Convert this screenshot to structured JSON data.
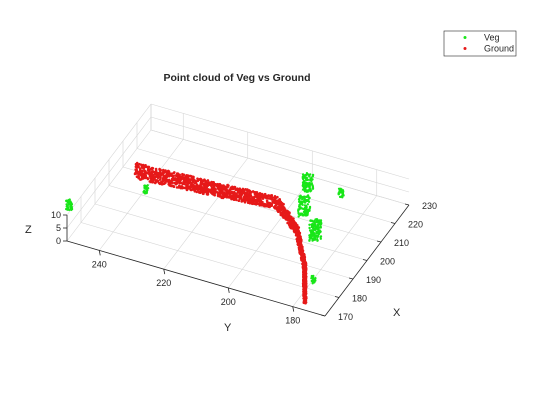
{
  "chart_data": {
    "type": "scatter",
    "projection": "3d",
    "title": "Point cloud of Veg vs Ground",
    "xlabel": "X",
    "ylabel": "Y",
    "zlabel": "Z",
    "xlim": [
      170,
      230
    ],
    "ylim": [
      170,
      250
    ],
    "zlim": [
      0,
      10
    ],
    "xticks": [
      "170",
      "180",
      "190",
      "200",
      "210",
      "220",
      "230"
    ],
    "yticks": [
      "180",
      "200",
      "220",
      "240"
    ],
    "zticks": [
      "0",
      "5",
      "10"
    ],
    "grid": true,
    "legend": "top-right",
    "series": [
      {
        "name": "Veg",
        "color": "#19e619",
        "marker": "dot",
        "clusters": [
          {
            "x": 176,
            "y": 252,
            "z": 9,
            "count": 40
          },
          {
            "x": 194,
            "y": 236,
            "z": 8,
            "count": 25
          },
          {
            "x": 220,
            "y": 197,
            "z": 6,
            "count": 90
          },
          {
            "x": 223,
            "y": 188,
            "z": 3,
            "count": 25
          },
          {
            "x": 208,
            "y": 193,
            "z": 7,
            "count": 110
          },
          {
            "x": 200,
            "y": 186,
            "z": 6,
            "count": 130
          },
          {
            "x": 180,
            "y": 178,
            "z": 4,
            "count": 20
          }
        ]
      },
      {
        "name": "Ground",
        "color": "#e61919",
        "marker": "dot",
        "path": [
          {
            "x": 210,
            "y": 246,
            "z": 0
          },
          {
            "x": 212,
            "y": 222,
            "z": 0
          },
          {
            "x": 214,
            "y": 204,
            "z": 0
          },
          {
            "x": 205,
            "y": 194,
            "z": 0
          },
          {
            "x": 190,
            "y": 185,
            "z": 0
          },
          {
            "x": 174,
            "y": 178,
            "z": 0
          }
        ]
      }
    ]
  }
}
